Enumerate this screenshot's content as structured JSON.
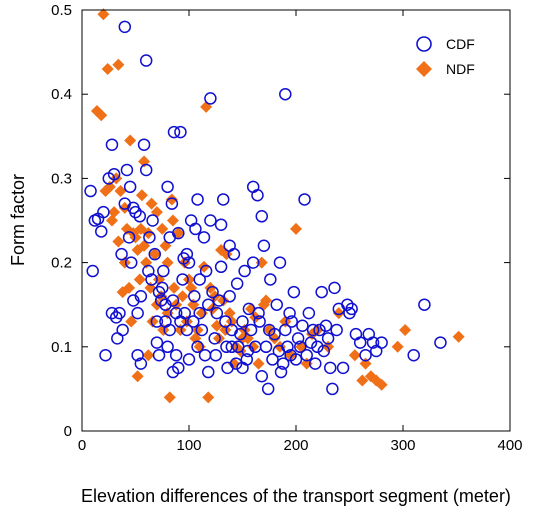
{
  "chart_data": {
    "type": "scatter",
    "xlabel": "Elevation differences of the transport segment (meter)",
    "ylabel": "Form factor",
    "xlim": [
      0,
      400
    ],
    "ylim": [
      0,
      0.5
    ],
    "x_ticks": [
      0,
      100,
      200,
      300,
      400
    ],
    "y_ticks": [
      0,
      0.1,
      0.2,
      0.3,
      0.4,
      0.5
    ],
    "grid": false,
    "legend_position": "top-right",
    "series": [
      {
        "name": "CDF",
        "marker": "open-circle",
        "color": "#1010d0",
        "points": [
          [
            8,
            0.285
          ],
          [
            10,
            0.19
          ],
          [
            12,
            0.25
          ],
          [
            15,
            0.252
          ],
          [
            18,
            0.237
          ],
          [
            20,
            0.26
          ],
          [
            22,
            0.09
          ],
          [
            25,
            0.3
          ],
          [
            28,
            0.34
          ],
          [
            28,
            0.14
          ],
          [
            30,
            0.305
          ],
          [
            32,
            0.135
          ],
          [
            33,
            0.11
          ],
          [
            35,
            0.14
          ],
          [
            37,
            0.21
          ],
          [
            38,
            0.12
          ],
          [
            40,
            0.48
          ],
          [
            40,
            0.27
          ],
          [
            42,
            0.31
          ],
          [
            44,
            0.23
          ],
          [
            45,
            0.29
          ],
          [
            46,
            0.2
          ],
          [
            48,
            0.155
          ],
          [
            48,
            0.265
          ],
          [
            50,
            0.26
          ],
          [
            52,
            0.09
          ],
          [
            52,
            0.14
          ],
          [
            54,
            0.255
          ],
          [
            55,
            0.08
          ],
          [
            55,
            0.16
          ],
          [
            58,
            0.34
          ],
          [
            60,
            0.44
          ],
          [
            60,
            0.31
          ],
          [
            62,
            0.19
          ],
          [
            63,
            0.23
          ],
          [
            65,
            0.18
          ],
          [
            66,
            0.25
          ],
          [
            68,
            0.21
          ],
          [
            70,
            0.13
          ],
          [
            70,
            0.105
          ],
          [
            72,
            0.09
          ],
          [
            72,
            0.165
          ],
          [
            74,
            0.155
          ],
          [
            75,
            0.17
          ],
          [
            76,
            0.19
          ],
          [
            78,
            0.15
          ],
          [
            78,
            0.13
          ],
          [
            80,
            0.29
          ],
          [
            80,
            0.1
          ],
          [
            82,
            0.12
          ],
          [
            82,
            0.23
          ],
          [
            84,
            0.27
          ],
          [
            85,
            0.07
          ],
          [
            85,
            0.155
          ],
          [
            86,
            0.355
          ],
          [
            88,
            0.14
          ],
          [
            88,
            0.09
          ],
          [
            90,
            0.075
          ],
          [
            90,
            0.235
          ],
          [
            92,
            0.355
          ],
          [
            92,
            0.13
          ],
          [
            94,
            0.18
          ],
          [
            95,
            0.205
          ],
          [
            96,
            0.14
          ],
          [
            98,
            0.12
          ],
          [
            98,
            0.21
          ],
          [
            100,
            0.085
          ],
          [
            100,
            0.2
          ],
          [
            102,
            0.25
          ],
          [
            104,
            0.13
          ],
          [
            105,
            0.16
          ],
          [
            106,
            0.24
          ],
          [
            108,
            0.1
          ],
          [
            108,
            0.275
          ],
          [
            110,
            0.14
          ],
          [
            110,
            0.18
          ],
          [
            112,
            0.12
          ],
          [
            114,
            0.23
          ],
          [
            115,
            0.09
          ],
          [
            116,
            0.19
          ],
          [
            118,
            0.15
          ],
          [
            118,
            0.07
          ],
          [
            120,
            0.395
          ],
          [
            120,
            0.25
          ],
          [
            122,
            0.165
          ],
          [
            124,
            0.11
          ],
          [
            125,
            0.09
          ],
          [
            126,
            0.14
          ],
          [
            128,
            0.155
          ],
          [
            130,
            0.245
          ],
          [
            130,
            0.195
          ],
          [
            132,
            0.275
          ],
          [
            134,
            0.13
          ],
          [
            135,
            0.1
          ],
          [
            136,
            0.075
          ],
          [
            138,
            0.16
          ],
          [
            138,
            0.22
          ],
          [
            140,
            0.1
          ],
          [
            140,
            0.12
          ],
          [
            142,
            0.21
          ],
          [
            144,
            0.08
          ],
          [
            145,
            0.175
          ],
          [
            146,
            0.1
          ],
          [
            148,
            0.115
          ],
          [
            150,
            0.075
          ],
          [
            150,
            0.13
          ],
          [
            152,
            0.19
          ],
          [
            154,
            0.085
          ],
          [
            155,
            0.095
          ],
          [
            156,
            0.145
          ],
          [
            158,
            0.12
          ],
          [
            160,
            0.29
          ],
          [
            160,
            0.2
          ],
          [
            162,
            0.1
          ],
          [
            164,
            0.28
          ],
          [
            165,
            0.14
          ],
          [
            166,
            0.13
          ],
          [
            168,
            0.255
          ],
          [
            168,
            0.065
          ],
          [
            170,
            0.22
          ],
          [
            172,
            0.1
          ],
          [
            174,
            0.05
          ],
          [
            175,
            0.12
          ],
          [
            176,
            0.18
          ],
          [
            178,
            0.085
          ],
          [
            180,
            0.115
          ],
          [
            182,
            0.15
          ],
          [
            184,
            0.095
          ],
          [
            185,
            0.2
          ],
          [
            186,
            0.07
          ],
          [
            188,
            0.08
          ],
          [
            190,
            0.4
          ],
          [
            190,
            0.12
          ],
          [
            192,
            0.1
          ],
          [
            194,
            0.14
          ],
          [
            195,
            0.09
          ],
          [
            196,
            0.13
          ],
          [
            198,
            0.165
          ],
          [
            200,
            0.085
          ],
          [
            202,
            0.11
          ],
          [
            204,
            0.1
          ],
          [
            206,
            0.125
          ],
          [
            208,
            0.275
          ],
          [
            210,
            0.09
          ],
          [
            212,
            0.14
          ],
          [
            214,
            0.105
          ],
          [
            216,
            0.12
          ],
          [
            218,
            0.08
          ],
          [
            220,
            0.1
          ],
          [
            222,
            0.12
          ],
          [
            224,
            0.165
          ],
          [
            226,
            0.095
          ],
          [
            228,
            0.125
          ],
          [
            230,
            0.11
          ],
          [
            232,
            0.075
          ],
          [
            234,
            0.05
          ],
          [
            236,
            0.17
          ],
          [
            238,
            0.12
          ],
          [
            240,
            0.145
          ],
          [
            244,
            0.075
          ],
          [
            248,
            0.15
          ],
          [
            250,
            0.14
          ],
          [
            252,
            0.145
          ],
          [
            256,
            0.115
          ],
          [
            260,
            0.105
          ],
          [
            265,
            0.09
          ],
          [
            268,
            0.115
          ],
          [
            272,
            0.105
          ],
          [
            275,
            0.095
          ],
          [
            280,
            0.105
          ],
          [
            310,
            0.09
          ],
          [
            320,
            0.15
          ],
          [
            335,
            0.105
          ]
        ]
      },
      {
        "name": "NDF",
        "marker": "filled-diamond",
        "color": "#f07018",
        "points": [
          [
            14,
            0.38
          ],
          [
            18,
            0.375
          ],
          [
            20,
            0.495
          ],
          [
            22,
            0.285
          ],
          [
            24,
            0.43
          ],
          [
            26,
            0.29
          ],
          [
            28,
            0.25
          ],
          [
            30,
            0.26
          ],
          [
            32,
            0.3
          ],
          [
            34,
            0.435
          ],
          [
            34,
            0.225
          ],
          [
            36,
            0.285
          ],
          [
            38,
            0.165
          ],
          [
            40,
            0.2
          ],
          [
            40,
            0.265
          ],
          [
            42,
            0.24
          ],
          [
            44,
            0.17
          ],
          [
            45,
            0.345
          ],
          [
            46,
            0.13
          ],
          [
            48,
            0.235
          ],
          [
            50,
            0.23
          ],
          [
            52,
            0.215
          ],
          [
            52,
            0.065
          ],
          [
            54,
            0.18
          ],
          [
            55,
            0.24
          ],
          [
            56,
            0.28
          ],
          [
            58,
            0.32
          ],
          [
            58,
            0.22
          ],
          [
            60,
            0.2
          ],
          [
            62,
            0.235
          ],
          [
            62,
            0.09
          ],
          [
            64,
            0.17
          ],
          [
            65,
            0.27
          ],
          [
            66,
            0.13
          ],
          [
            68,
            0.21
          ],
          [
            70,
            0.26
          ],
          [
            70,
            0.15
          ],
          [
            72,
            0.18
          ],
          [
            74,
            0.16
          ],
          [
            75,
            0.24
          ],
          [
            76,
            0.12
          ],
          [
            78,
            0.22
          ],
          [
            80,
            0.2
          ],
          [
            80,
            0.14
          ],
          [
            82,
            0.04
          ],
          [
            84,
            0.275
          ],
          [
            85,
            0.25
          ],
          [
            86,
            0.17
          ],
          [
            88,
            0.15
          ],
          [
            90,
            0.235
          ],
          [
            92,
            0.12
          ],
          [
            94,
            0.16
          ],
          [
            96,
            0.2
          ],
          [
            98,
            0.13
          ],
          [
            100,
            0.18
          ],
          [
            102,
            0.17
          ],
          [
            104,
            0.15
          ],
          [
            106,
            0.11
          ],
          [
            108,
            0.12
          ],
          [
            110,
            0.1
          ],
          [
            112,
            0.14
          ],
          [
            114,
            0.195
          ],
          [
            116,
            0.385
          ],
          [
            118,
            0.04
          ],
          [
            120,
            0.17
          ],
          [
            122,
            0.145
          ],
          [
            124,
            0.16
          ],
          [
            126,
            0.125
          ],
          [
            128,
            0.11
          ],
          [
            130,
            0.215
          ],
          [
            132,
            0.155
          ],
          [
            134,
            0.12
          ],
          [
            135,
            0.21
          ],
          [
            138,
            0.14
          ],
          [
            140,
            0.13
          ],
          [
            142,
            0.08
          ],
          [
            144,
            0.1
          ],
          [
            148,
            0.095
          ],
          [
            150,
            0.11
          ],
          [
            152,
            0.12
          ],
          [
            155,
            0.11
          ],
          [
            158,
            0.145
          ],
          [
            160,
            0.1
          ],
          [
            162,
            0.135
          ],
          [
            165,
            0.08
          ],
          [
            168,
            0.2
          ],
          [
            170,
            0.15
          ],
          [
            172,
            0.155
          ],
          [
            175,
            0.12
          ],
          [
            180,
            0.11
          ],
          [
            185,
            0.1
          ],
          [
            190,
            0.13
          ],
          [
            195,
            0.09
          ],
          [
            200,
            0.24
          ],
          [
            205,
            0.1
          ],
          [
            210,
            0.08
          ],
          [
            215,
            0.115
          ],
          [
            220,
            0.12
          ],
          [
            230,
            0.1
          ],
          [
            240,
            0.14
          ],
          [
            255,
            0.09
          ],
          [
            262,
            0.06
          ],
          [
            265,
            0.08
          ],
          [
            270,
            0.065
          ],
          [
            275,
            0.06
          ],
          [
            280,
            0.055
          ],
          [
            295,
            0.1
          ],
          [
            302,
            0.12
          ],
          [
            352,
            0.112
          ]
        ]
      }
    ]
  }
}
